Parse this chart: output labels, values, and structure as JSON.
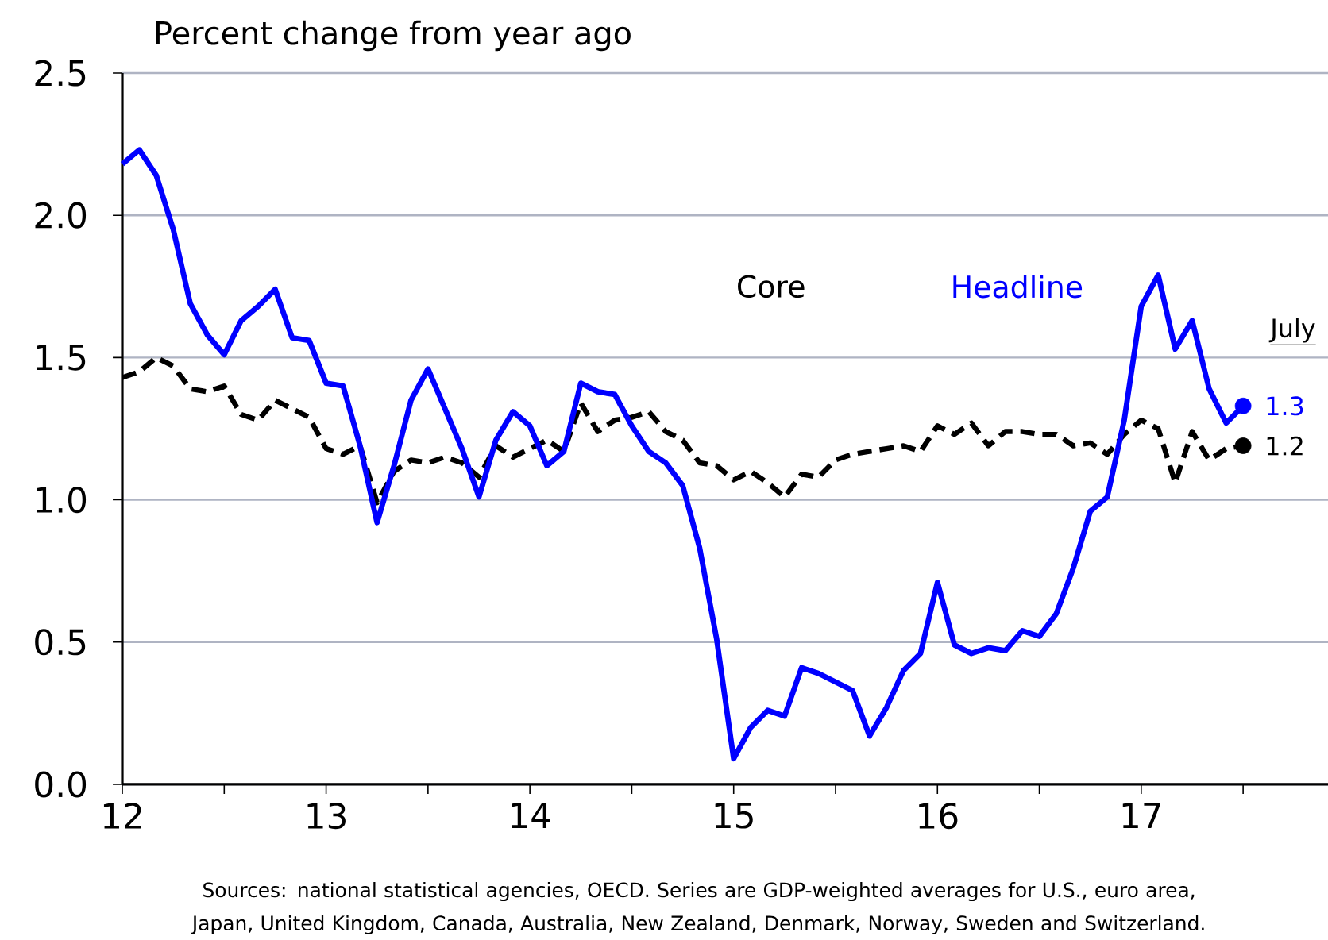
{
  "chart_data": {
    "type": "line",
    "ylabel": "Percent change from year ago",
    "x": [
      "2012-01",
      "2012-02",
      "2012-03",
      "2012-04",
      "2012-05",
      "2012-06",
      "2012-07",
      "2012-08",
      "2012-09",
      "2012-10",
      "2012-11",
      "2012-12",
      "2013-01",
      "2013-02",
      "2013-03",
      "2013-04",
      "2013-05",
      "2013-06",
      "2013-07",
      "2013-08",
      "2013-09",
      "2013-10",
      "2013-11",
      "2013-12",
      "2014-01",
      "2014-02",
      "2014-03",
      "2014-04",
      "2014-05",
      "2014-06",
      "2014-07",
      "2014-08",
      "2014-09",
      "2014-10",
      "2014-11",
      "2014-12",
      "2015-01",
      "2015-02",
      "2015-03",
      "2015-04",
      "2015-05",
      "2015-06",
      "2015-07",
      "2015-08",
      "2015-09",
      "2015-10",
      "2015-11",
      "2015-12",
      "2016-01",
      "2016-02",
      "2016-03",
      "2016-04",
      "2016-05",
      "2016-06",
      "2016-07",
      "2016-08",
      "2016-09",
      "2016-10",
      "2016-11",
      "2016-12",
      "2017-01",
      "2017-02",
      "2017-03",
      "2017-04",
      "2017-05",
      "2017-06",
      "2017-07"
    ],
    "series": [
      {
        "name": "Core",
        "color": "#000000",
        "line_style": "dashed",
        "values": [
          1.43,
          1.45,
          1.5,
          1.47,
          1.39,
          1.38,
          1.4,
          1.3,
          1.28,
          1.35,
          1.32,
          1.29,
          1.18,
          1.16,
          1.19,
          0.99,
          1.1,
          1.14,
          1.13,
          1.15,
          1.13,
          1.08,
          1.19,
          1.15,
          1.18,
          1.21,
          1.17,
          1.34,
          1.24,
          1.28,
          1.29,
          1.31,
          1.24,
          1.21,
          1.13,
          1.12,
          1.07,
          1.1,
          1.06,
          1.01,
          1.09,
          1.08,
          1.14,
          1.16,
          1.17,
          1.18,
          1.19,
          1.17,
          1.26,
          1.23,
          1.27,
          1.19,
          1.24,
          1.24,
          1.23,
          1.23,
          1.19,
          1.2,
          1.16,
          1.23,
          1.28,
          1.25,
          1.06,
          1.24,
          1.14,
          1.18,
          1.19
        ],
        "value_labels": [
          null,
          null,
          null,
          null,
          null,
          null,
          null,
          null,
          null,
          null,
          null,
          null,
          null,
          null,
          null,
          null,
          null,
          null,
          null,
          null,
          null,
          null,
          null,
          null,
          null,
          null,
          null,
          null,
          null,
          null,
          null,
          null,
          null,
          null,
          null,
          null,
          null,
          null,
          null,
          null,
          null,
          null,
          null,
          null,
          null,
          null,
          null,
          null,
          null,
          null,
          null,
          null,
          null,
          null,
          null,
          null,
          null,
          null,
          null,
          null,
          null,
          null,
          null,
          null,
          null,
          null,
          "1.2"
        ]
      },
      {
        "name": "Headline",
        "color": "#0000ff",
        "line_style": "solid",
        "values": [
          2.18,
          2.23,
          2.14,
          1.95,
          1.69,
          1.58,
          1.51,
          1.63,
          1.68,
          1.74,
          1.57,
          1.56,
          1.41,
          1.4,
          1.19,
          0.92,
          1.12,
          1.35,
          1.46,
          1.32,
          1.18,
          1.01,
          1.21,
          1.31,
          1.26,
          1.12,
          1.17,
          1.41,
          1.38,
          1.37,
          1.26,
          1.17,
          1.13,
          1.05,
          0.83,
          0.51,
          0.09,
          0.2,
          0.26,
          0.24,
          0.41,
          0.39,
          0.36,
          0.33,
          0.17,
          0.27,
          0.4,
          0.46,
          0.71,
          0.49,
          0.46,
          0.48,
          0.47,
          0.54,
          0.52,
          0.6,
          0.76,
          0.96,
          1.01,
          1.28,
          1.68,
          1.79,
          1.53,
          1.63,
          1.39,
          1.27,
          1.33
        ],
        "value_labels": [
          null,
          null,
          null,
          null,
          null,
          null,
          null,
          null,
          null,
          null,
          null,
          null,
          null,
          null,
          null,
          null,
          null,
          null,
          null,
          null,
          null,
          null,
          null,
          null,
          null,
          null,
          null,
          null,
          null,
          null,
          null,
          null,
          null,
          null,
          null,
          null,
          null,
          null,
          null,
          null,
          null,
          null,
          null,
          null,
          null,
          null,
          null,
          null,
          null,
          null,
          null,
          null,
          null,
          null,
          null,
          null,
          null,
          null,
          null,
          null,
          null,
          null,
          null,
          null,
          null,
          null,
          "1.3"
        ]
      }
    ],
    "xlim": [
      "2012-01",
      "2017-12"
    ],
    "xticks": [
      {
        "value": "2012-01",
        "label": "12"
      },
      {
        "value": "2012-07",
        "label": null
      },
      {
        "value": "2013-01",
        "label": "13"
      },
      {
        "value": "2013-07",
        "label": null
      },
      {
        "value": "2014-01",
        "label": "14"
      },
      {
        "value": "2014-07",
        "label": null
      },
      {
        "value": "2015-01",
        "label": "15"
      },
      {
        "value": "2015-07",
        "label": null
      },
      {
        "value": "2016-01",
        "label": "16"
      },
      {
        "value": "2016-07",
        "label": null
      },
      {
        "value": "2017-01",
        "label": "17"
      },
      {
        "value": "2017-07",
        "label": null
      }
    ],
    "ylim": [
      0,
      2.5
    ],
    "yticks": [
      {
        "value": 0,
        "label": "0.0"
      },
      {
        "value": 0.5,
        "label": "0.5"
      },
      {
        "value": 1,
        "label": "1.0"
      },
      {
        "value": 1.5,
        "label": "1.5"
      },
      {
        "value": 2,
        "label": "2.0"
      },
      {
        "value": 2.5,
        "label": "2.5"
      }
    ],
    "grid": "y",
    "legend": false,
    "annotations": [
      "July",
      "Sources:  national statistical agencies, OECD.  Series are GDP-weighted averages for U.S., euro area, Japan, United Kingdom, Canada, Australia, New Zealand, Denmark, Norway, Sweden and Switzerland."
    ]
  }
}
